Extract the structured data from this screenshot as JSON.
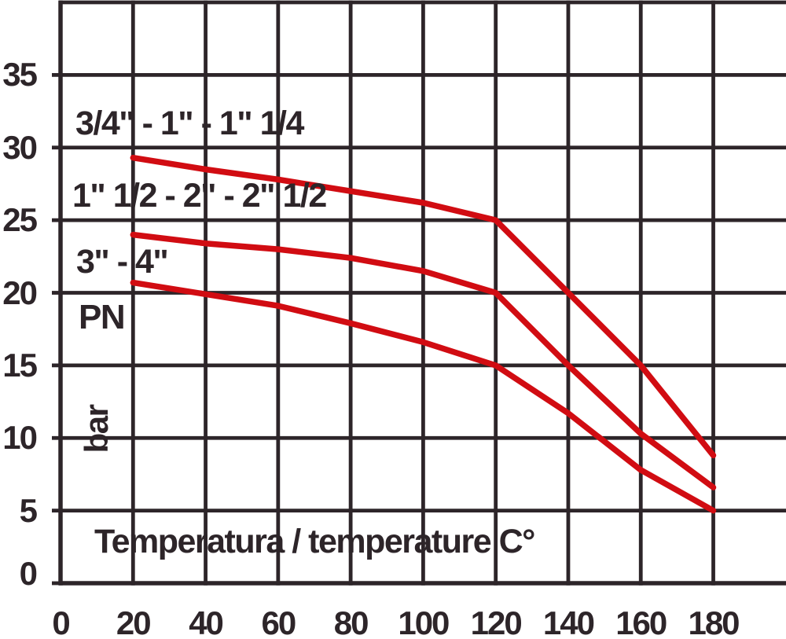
{
  "chart_data": {
    "type": "line",
    "title": "",
    "xlabel": "Temperatura / temperature C°",
    "y_axis_label_primary": "PN",
    "y_axis_label_unit": "bar",
    "x_ticks": [
      0,
      20,
      40,
      60,
      80,
      100,
      120,
      140,
      160,
      180
    ],
    "y_ticks": [
      0,
      5,
      10,
      15,
      20,
      25,
      30,
      35
    ],
    "xlim": [
      0,
      200
    ],
    "ylim": [
      0,
      40
    ],
    "grid": true,
    "legend_position": "inline-left-above-each-curve",
    "x": [
      20,
      40,
      60,
      80,
      100,
      120,
      140,
      160,
      180
    ],
    "series": [
      {
        "name": "3/4\" - 1\" - 1\" 1/4",
        "values": [
          29.3,
          28.5,
          27.8,
          27.0,
          26.2,
          25.0,
          20.0,
          15.0,
          8.8
        ]
      },
      {
        "name": "1\" 1/2 - 2\" - 2\" 1/2",
        "values": [
          24.0,
          23.4,
          23.0,
          22.4,
          21.5,
          20.0,
          15.0,
          10.3,
          6.6
        ]
      },
      {
        "name": "3\" - 4\"",
        "values": [
          20.7,
          19.9,
          19.1,
          17.9,
          16.6,
          15.0,
          11.7,
          7.8,
          5.0
        ]
      }
    ],
    "colors": {
      "curve": "#d10c12",
      "grid": "#2d2529",
      "text": "#2d2529",
      "background": "#ffffff"
    }
  }
}
